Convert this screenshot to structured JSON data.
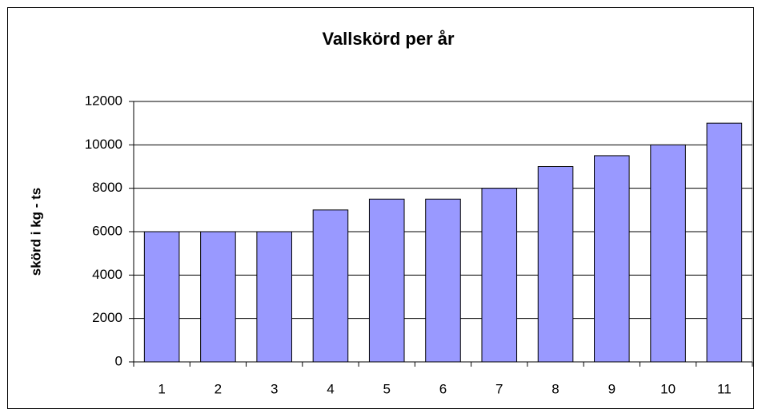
{
  "chart_data": {
    "type": "bar",
    "title": "Vallskörd per år",
    "y_label": "skörd i kg - ts",
    "categories": [
      "1",
      "2",
      "3",
      "4",
      "5",
      "6",
      "7",
      "8",
      "9",
      "10",
      "11"
    ],
    "values": [
      6000,
      6000,
      6000,
      7000,
      7500,
      7500,
      8000,
      9000,
      9500,
      10000,
      11000
    ],
    "color": "#9999ff",
    "ylim": [
      0,
      12000
    ],
    "yticks": [
      0,
      2000,
      4000,
      6000,
      8000,
      10000,
      12000
    ],
    "grid": true
  }
}
